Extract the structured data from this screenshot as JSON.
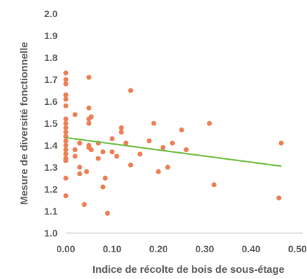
{
  "chart_data": {
    "type": "scatter",
    "xlabel": "Indice de récolte de bois de sous-étage",
    "ylabel": "Mesure de diversité fonctionnelle",
    "xlim": [
      0,
      0.5
    ],
    "ylim": [
      1.0,
      2.0
    ],
    "x_ticks": [
      "0.00",
      "0.10",
      "0.20",
      "0.30",
      "0.40",
      "0.50"
    ],
    "y_ticks": [
      "1.0",
      "1.1",
      "1.2",
      "1.3",
      "1.4",
      "1.5",
      "1.6",
      "1.7",
      "1.8",
      "1.9",
      "2.0"
    ],
    "grid": false,
    "legend": "none",
    "points": [
      {
        "x": 0.0,
        "y": 1.73
      },
      {
        "x": 0.0,
        "y": 1.7
      },
      {
        "x": 0.0,
        "y": 1.68
      },
      {
        "x": 0.0,
        "y": 1.63
      },
      {
        "x": 0.0,
        "y": 1.61
      },
      {
        "x": 0.0,
        "y": 1.58
      },
      {
        "x": 0.0,
        "y": 1.52
      },
      {
        "x": 0.0,
        "y": 1.5
      },
      {
        "x": 0.0,
        "y": 1.48
      },
      {
        "x": 0.0,
        "y": 1.46
      },
      {
        "x": 0.0,
        "y": 1.44
      },
      {
        "x": 0.0,
        "y": 1.42
      },
      {
        "x": 0.0,
        "y": 1.4
      },
      {
        "x": 0.0,
        "y": 1.38
      },
      {
        "x": 0.0,
        "y": 1.36
      },
      {
        "x": 0.0,
        "y": 1.34
      },
      {
        "x": 0.0,
        "y": 1.33
      },
      {
        "x": 0.0,
        "y": 1.25
      },
      {
        "x": 0.0,
        "y": 1.17
      },
      {
        "x": 0.02,
        "y": 1.54
      },
      {
        "x": 0.02,
        "y": 1.38
      },
      {
        "x": 0.02,
        "y": 1.35
      },
      {
        "x": 0.03,
        "y": 1.41
      },
      {
        "x": 0.03,
        "y": 1.3
      },
      {
        "x": 0.03,
        "y": 1.27
      },
      {
        "x": 0.04,
        "y": 1.13
      },
      {
        "x": 0.045,
        "y": 1.28
      },
      {
        "x": 0.05,
        "y": 1.71
      },
      {
        "x": 0.05,
        "y": 1.57
      },
      {
        "x": 0.05,
        "y": 1.52
      },
      {
        "x": 0.05,
        "y": 1.5
      },
      {
        "x": 0.05,
        "y": 1.4
      },
      {
        "x": 0.05,
        "y": 1.39
      },
      {
        "x": 0.055,
        "y": 1.53
      },
      {
        "x": 0.055,
        "y": 1.38
      },
      {
        "x": 0.07,
        "y": 1.41
      },
      {
        "x": 0.07,
        "y": 1.34
      },
      {
        "x": 0.08,
        "y": 1.21
      },
      {
        "x": 0.08,
        "y": 1.37
      },
      {
        "x": 0.085,
        "y": 1.25
      },
      {
        "x": 0.09,
        "y": 1.09
      },
      {
        "x": 0.1,
        "y": 1.43
      },
      {
        "x": 0.1,
        "y": 1.37
      },
      {
        "x": 0.11,
        "y": 1.35
      },
      {
        "x": 0.12,
        "y": 1.48
      },
      {
        "x": 0.12,
        "y": 1.46
      },
      {
        "x": 0.13,
        "y": 1.41
      },
      {
        "x": 0.14,
        "y": 1.65
      },
      {
        "x": 0.14,
        "y": 1.31
      },
      {
        "x": 0.16,
        "y": 1.36
      },
      {
        "x": 0.18,
        "y": 1.42
      },
      {
        "x": 0.19,
        "y": 1.5
      },
      {
        "x": 0.2,
        "y": 1.28
      },
      {
        "x": 0.21,
        "y": 1.39
      },
      {
        "x": 0.22,
        "y": 1.3
      },
      {
        "x": 0.23,
        "y": 1.41
      },
      {
        "x": 0.25,
        "y": 1.47
      },
      {
        "x": 0.26,
        "y": 1.38
      },
      {
        "x": 0.31,
        "y": 1.5
      },
      {
        "x": 0.32,
        "y": 1.22
      },
      {
        "x": 0.46,
        "y": 1.16
      },
      {
        "x": 0.465,
        "y": 1.41
      }
    ],
    "trendline": {
      "x": [
        0.0,
        0.465
      ],
      "y": [
        1.435,
        1.305
      ]
    },
    "colors": {
      "points": "#ED7D53",
      "trendline": "#70BE44",
      "axis": "#D9D9D9",
      "text": "#595959"
    }
  }
}
